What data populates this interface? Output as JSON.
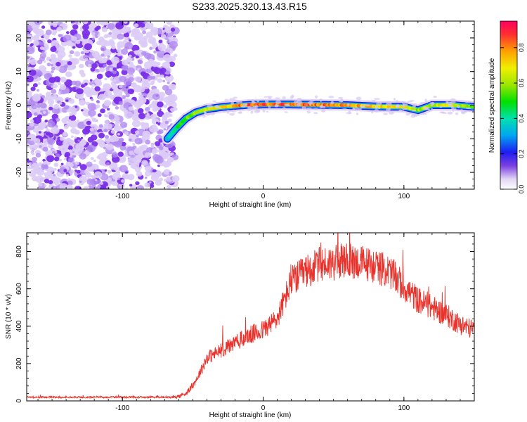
{
  "page": {
    "title": "S233.2025.320.13.43.R15"
  },
  "colors": {
    "snr_line": "#e8322b",
    "frame": "#000000",
    "background": "#ffffff"
  },
  "chart_data": [
    {
      "type": "heatmap",
      "title": "S233.2025.320.13.43.R15",
      "xlabel": "Height of straight line (km)",
      "ylabel": "Frequency (Hz)",
      "xlim": [
        -168,
        150
      ],
      "ylim": [
        -25,
        25
      ],
      "x_ticks": [
        -100,
        0,
        100
      ],
      "y_ticks": [
        -20,
        -10,
        0,
        10,
        20
      ],
      "colorbar": {
        "label": "Normalized spectral amplitude",
        "range": [
          0,
          0.95
        ],
        "ticks": [
          "0.0",
          "0.2",
          "0.4",
          "0.6",
          "0.8"
        ]
      },
      "noise_region_x": [
        -168,
        -62
      ],
      "ridge": {
        "x": [
          -68,
          -62,
          -55,
          -48,
          -40,
          -30,
          -20,
          -10,
          0,
          20,
          40,
          60,
          80,
          100,
          110,
          120,
          135,
          150
        ],
        "frequency": [
          -10,
          -7,
          -4,
          -2.2,
          -1.2,
          -0.6,
          -0.2,
          0.1,
          0.2,
          0.2,
          0.1,
          0.0,
          -0.4,
          -0.5,
          -1.5,
          0.0,
          0.0,
          -0.5
        ],
        "amplitude": [
          0.35,
          0.5,
          0.6,
          0.65,
          0.7,
          0.78,
          0.85,
          0.92,
          0.9,
          0.95,
          0.9,
          0.85,
          0.78,
          0.75,
          0.65,
          0.7,
          0.72,
          0.6
        ]
      }
    },
    {
      "type": "line",
      "xlabel": "Height of straight line (km)",
      "ylabel": "SNR (10 * v/v)",
      "xlim": [
        -168,
        150
      ],
      "ylim": [
        0,
        900
      ],
      "x_ticks": [
        -100,
        0,
        100
      ],
      "y_ticks": [
        0,
        200,
        400,
        600,
        800
      ],
      "envelope": {
        "x": [
          -168,
          -62,
          -55,
          -50,
          -45,
          -40,
          -30,
          -20,
          -10,
          0,
          10,
          20,
          30,
          40,
          50,
          60,
          70,
          80,
          90,
          100,
          110,
          120,
          130,
          140,
          150
        ],
        "y": [
          20,
          20,
          40,
          80,
          150,
          230,
          270,
          310,
          350,
          380,
          440,
          640,
          690,
          730,
          740,
          750,
          740,
          720,
          690,
          610,
          540,
          500,
          460,
          410,
          380
        ]
      }
    }
  ]
}
